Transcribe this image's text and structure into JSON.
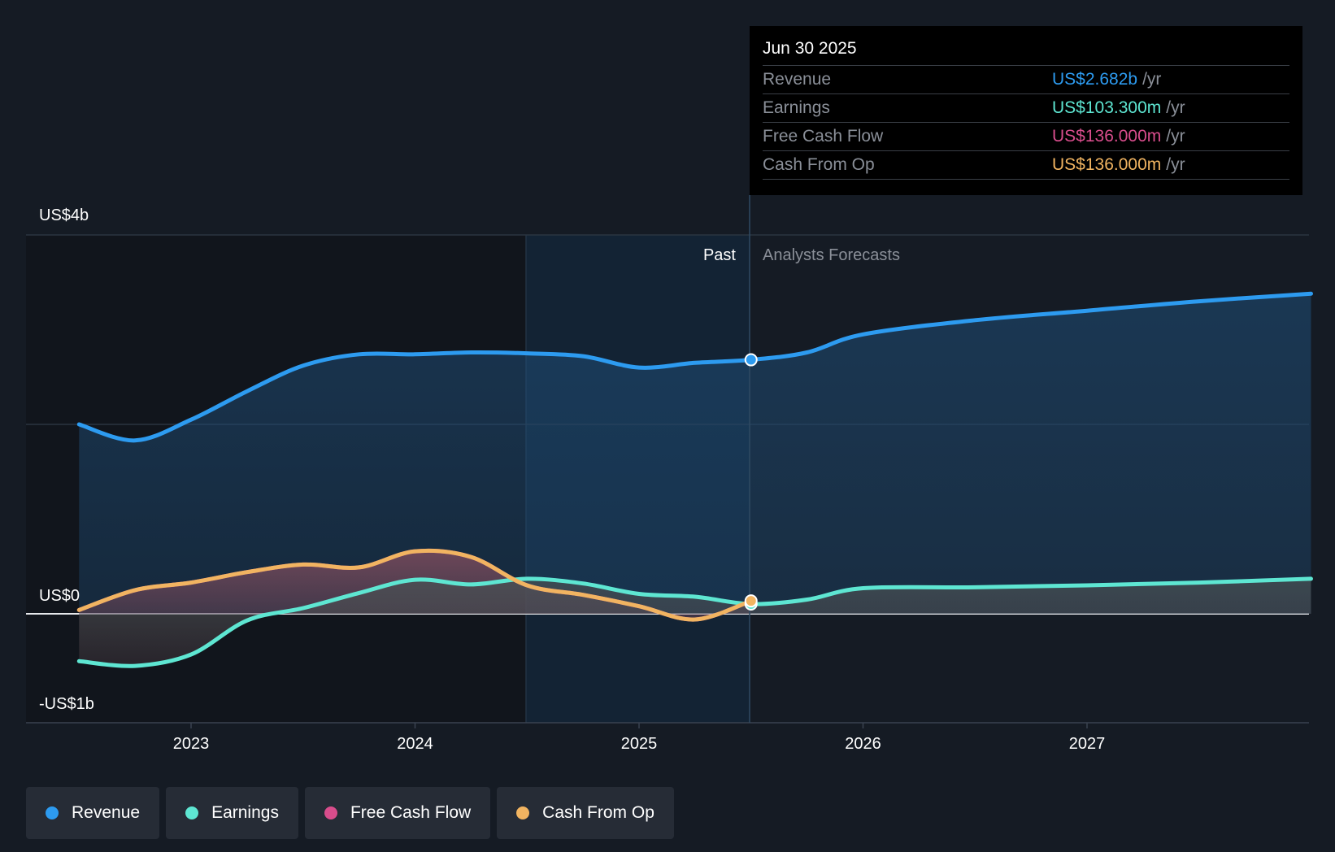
{
  "chart_data": {
    "type": "area",
    "x_axis": {
      "ticks": [
        "2023",
        "2024",
        "2025",
        "2026",
        "2027"
      ]
    },
    "y_axis": {
      "labels": [
        "US$4b",
        "US$0",
        "-US$1b"
      ],
      "ylim": [
        -1.0,
        4.0
      ],
      "unit": "US$ billions"
    },
    "divider": {
      "past_label": "Past",
      "forecast_label": "Analysts Forecasts",
      "at": 2025.5
    },
    "series": [
      {
        "name": "Revenue",
        "color": "#2d9bf0",
        "points": [
          [
            2022.5,
            2.0
          ],
          [
            2022.75,
            1.83
          ],
          [
            2023.0,
            2.05
          ],
          [
            2023.25,
            2.35
          ],
          [
            2023.5,
            2.62
          ],
          [
            2023.75,
            2.74
          ],
          [
            2024.0,
            2.74
          ],
          [
            2024.25,
            2.76
          ],
          [
            2024.5,
            2.75
          ],
          [
            2024.75,
            2.72
          ],
          [
            2025.0,
            2.6
          ],
          [
            2025.25,
            2.65
          ],
          [
            2025.5,
            2.682
          ],
          [
            2025.75,
            2.76
          ],
          [
            2026.0,
            2.95
          ],
          [
            2026.5,
            3.1
          ],
          [
            2027.0,
            3.2
          ],
          [
            2027.5,
            3.3
          ],
          [
            2028.0,
            3.38
          ]
        ]
      },
      {
        "name": "Earnings",
        "color": "#5ee6d2",
        "points": [
          [
            2022.5,
            -0.5
          ],
          [
            2022.75,
            -0.55
          ],
          [
            2023.0,
            -0.43
          ],
          [
            2023.25,
            -0.07
          ],
          [
            2023.5,
            0.06
          ],
          [
            2023.75,
            0.22
          ],
          [
            2024.0,
            0.36
          ],
          [
            2024.25,
            0.31
          ],
          [
            2024.5,
            0.37
          ],
          [
            2024.75,
            0.32
          ],
          [
            2025.0,
            0.21
          ],
          [
            2025.25,
            0.18
          ],
          [
            2025.5,
            0.1033
          ],
          [
            2025.75,
            0.15
          ],
          [
            2026.0,
            0.27
          ],
          [
            2026.5,
            0.28
          ],
          [
            2027.0,
            0.3
          ],
          [
            2027.5,
            0.33
          ],
          [
            2028.0,
            0.37
          ]
        ]
      },
      {
        "name": "Free Cash Flow",
        "color": "#d84d8c",
        "points": [
          [
            2022.5,
            0.04
          ],
          [
            2022.75,
            0.25
          ],
          [
            2023.0,
            0.33
          ],
          [
            2023.25,
            0.44
          ],
          [
            2023.5,
            0.52
          ],
          [
            2023.75,
            0.49
          ],
          [
            2024.0,
            0.66
          ],
          [
            2024.25,
            0.6
          ],
          [
            2024.5,
            0.3
          ],
          [
            2024.75,
            0.2
          ],
          [
            2025.0,
            0.08
          ],
          [
            2025.25,
            -0.06
          ],
          [
            2025.5,
            0.136
          ]
        ]
      },
      {
        "name": "Cash From Op",
        "color": "#f1b461",
        "points": [
          [
            2022.5,
            0.04
          ],
          [
            2022.75,
            0.25
          ],
          [
            2023.0,
            0.33
          ],
          [
            2023.25,
            0.44
          ],
          [
            2023.5,
            0.52
          ],
          [
            2023.75,
            0.49
          ],
          [
            2024.0,
            0.66
          ],
          [
            2024.25,
            0.6
          ],
          [
            2024.5,
            0.3
          ],
          [
            2024.75,
            0.2
          ],
          [
            2025.0,
            0.08
          ],
          [
            2025.25,
            -0.06
          ],
          [
            2025.5,
            0.136
          ]
        ]
      }
    ]
  },
  "tooltip": {
    "date": "Jun 30 2025",
    "rows": [
      {
        "label": "Revenue",
        "value": "US$2.682b",
        "unit": "/yr",
        "color": "#2d9bf0"
      },
      {
        "label": "Earnings",
        "value": "US$103.300m",
        "unit": "/yr",
        "color": "#5ee6d2"
      },
      {
        "label": "Free Cash Flow",
        "value": "US$136.000m",
        "unit": "/yr",
        "color": "#d84d8c"
      },
      {
        "label": "Cash From Op",
        "value": "US$136.000m",
        "unit": "/yr",
        "color": "#f1b461"
      }
    ]
  },
  "legend": [
    {
      "label": "Revenue",
      "color": "#2d9bf0"
    },
    {
      "label": "Earnings",
      "color": "#5ee6d2"
    },
    {
      "label": "Free Cash Flow",
      "color": "#d84d8c"
    },
    {
      "label": "Cash From Op",
      "color": "#f1b461"
    }
  ]
}
